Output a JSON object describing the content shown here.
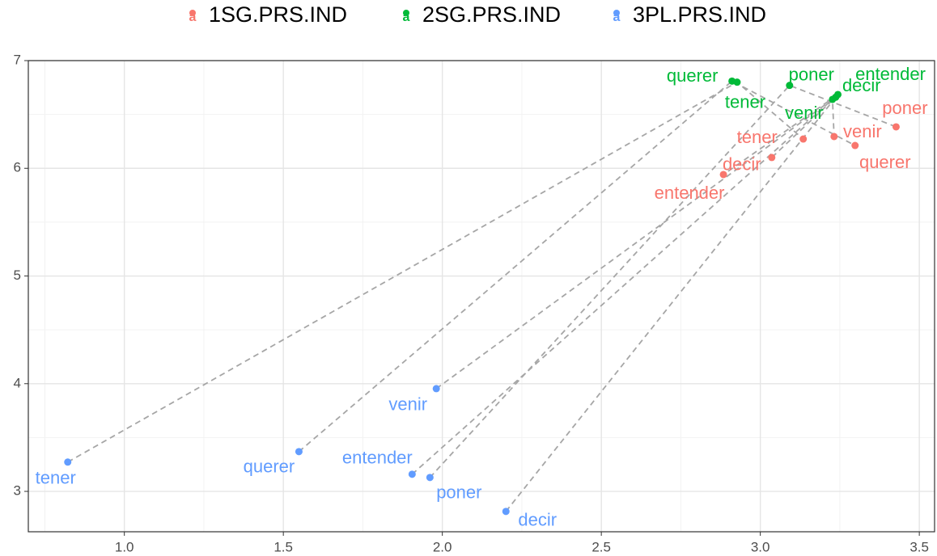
{
  "chart_data": {
    "type": "scatter",
    "xlim": [
      0.698,
      3.548
    ],
    "ylim": [
      2.625,
      7.0
    ],
    "xticks": [
      {
        "value": 1,
        "label": "1.0"
      },
      {
        "value": 1.5,
        "label": "1.5"
      },
      {
        "value": 2,
        "label": "2.0"
      },
      {
        "value": 2.5,
        "label": "2.5"
      },
      {
        "value": 3,
        "label": "3.0"
      },
      {
        "value": 3.5,
        "label": "3.5"
      }
    ],
    "yticks": [
      3,
      4,
      5,
      6,
      7
    ],
    "grid": true,
    "legend": "top",
    "series": [
      {
        "name": "1SG.PRS.IND",
        "color": "#F8766D",
        "labels": [
          "tener",
          "decir",
          "entender",
          "venir",
          "querer",
          "poner"
        ],
        "x": [
          3.135,
          3.036,
          2.884,
          3.232,
          3.298,
          3.427
        ],
        "y": [
          6.272,
          6.1,
          5.942,
          6.295,
          6.212,
          6.385
        ]
      },
      {
        "name": "2SG.PRS.IND",
        "color": "#00BA38",
        "labels": [
          "tener",
          "decir",
          "entender",
          "venir",
          "querer",
          "poner"
        ],
        "x": [
          2.927,
          3.237,
          3.244,
          3.227,
          2.911,
          3.092
        ],
        "y": [
          6.8,
          6.66,
          6.685,
          6.64,
          6.81,
          6.77
        ]
      },
      {
        "name": "3PL.PRS.IND",
        "color": "#619CFF",
        "labels": [
          "tener",
          "decir",
          "entender",
          "venir",
          "querer",
          "poner"
        ],
        "x": [
          0.822,
          2.2,
          1.905,
          1.981,
          1.549,
          1.961
        ],
        "y": [
          3.272,
          2.814,
          3.159,
          3.954,
          3.369,
          3.129
        ]
      }
    ]
  }
}
